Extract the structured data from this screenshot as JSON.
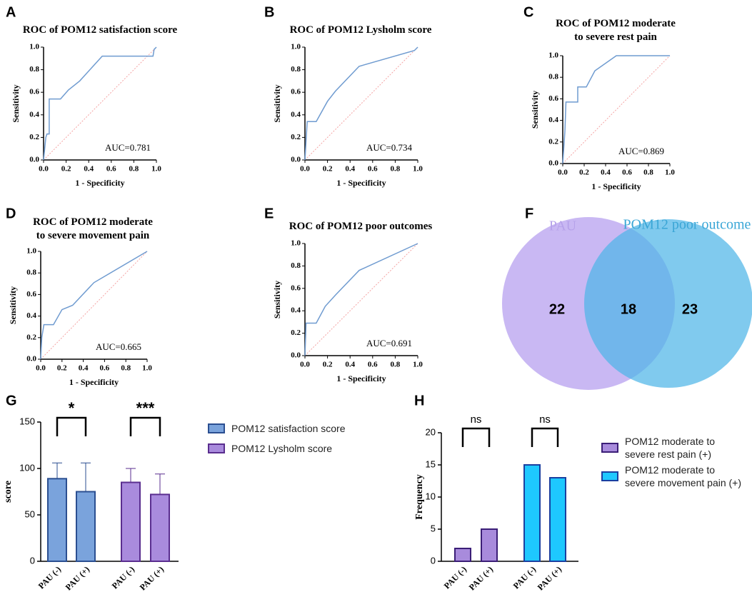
{
  "chart_data": [
    {
      "type": "roc",
      "panel": "A",
      "title": "ROC of POM12 satisfaction score",
      "xlabel": "1 - Specificity",
      "ylabel": "Sensitivity",
      "annotation": "AUC=0.781",
      "color": "#6f9bd0",
      "x": [
        0,
        0.02,
        0.03,
        0.05,
        0.05,
        0.15,
        0.22,
        0.32,
        0.52,
        0.97,
        0.98,
        1
      ],
      "values": [
        0,
        0.2,
        0.23,
        0.23,
        0.54,
        0.54,
        0.62,
        0.7,
        0.92,
        0.92,
        0.98,
        1
      ],
      "xlim": [
        0,
        1
      ],
      "ylim": [
        0,
        1
      ],
      "xticks": [
        {
          "value": 0,
          "label": "0.0"
        },
        {
          "value": 0.2,
          "label": "0.2"
        },
        {
          "value": 0.4,
          "label": "0.4"
        },
        {
          "value": 0.6,
          "label": "0.6"
        },
        {
          "value": 0.8,
          "label": "0.8"
        },
        {
          "value": 1,
          "label": "1.0"
        }
      ],
      "yticks": [
        {
          "value": 0,
          "label": "0.0"
        },
        {
          "value": 0.2,
          "label": "0.2"
        },
        {
          "value": 0.4,
          "label": "0.4"
        },
        {
          "value": 0.6,
          "label": "0.6"
        },
        {
          "value": 0.8,
          "label": "0.8"
        },
        {
          "value": 1,
          "label": "1.0"
        }
      ]
    },
    {
      "type": "roc",
      "panel": "B",
      "title": "ROC of POM12 Lysholm score",
      "xlabel": "1 - Specificity",
      "ylabel": "Sensitivity",
      "annotation": "AUC=0.734",
      "color": "#6f9bd0",
      "x": [
        0,
        0.02,
        0.1,
        0.2,
        0.27,
        0.48,
        0.97,
        1
      ],
      "values": [
        0,
        0.34,
        0.34,
        0.52,
        0.61,
        0.83,
        0.97,
        1
      ],
      "xlim": [
        0,
        1
      ],
      "ylim": [
        0,
        1
      ],
      "xticks": [
        {
          "value": 0,
          "label": "0.0"
        },
        {
          "value": 0.2,
          "label": "0.2"
        },
        {
          "value": 0.4,
          "label": "0.4"
        },
        {
          "value": 0.6,
          "label": "0.6"
        },
        {
          "value": 0.8,
          "label": "0.8"
        },
        {
          "value": 1,
          "label": "1.0"
        }
      ],
      "yticks": [
        {
          "value": 0,
          "label": "0.0"
        },
        {
          "value": 0.2,
          "label": "0.2"
        },
        {
          "value": 0.4,
          "label": "0.4"
        },
        {
          "value": 0.6,
          "label": "0.6"
        },
        {
          "value": 0.8,
          "label": "0.8"
        },
        {
          "value": 1,
          "label": "1.0"
        }
      ]
    },
    {
      "type": "roc",
      "panel": "C",
      "title": "ROC of POM12 moderate to severe rest pain",
      "xlabel": "1 - Specificity",
      "ylabel": "Sensitivity",
      "annotation": "AUC=0.869",
      "color": "#6f9bd0",
      "x": [
        0,
        0.02,
        0.03,
        0.14,
        0.14,
        0.22,
        0.3,
        0.5,
        1
      ],
      "values": [
        0,
        0.3,
        0.57,
        0.57,
        0.71,
        0.71,
        0.86,
        1,
        1
      ],
      "xlim": [
        0,
        1
      ],
      "ylim": [
        0,
        1
      ],
      "xticks": [
        {
          "value": 0,
          "label": "0.0"
        },
        {
          "value": 0.2,
          "label": "0.2"
        },
        {
          "value": 0.4,
          "label": "0.4"
        },
        {
          "value": 0.6,
          "label": "0.6"
        },
        {
          "value": 0.8,
          "label": "0.8"
        },
        {
          "value": 1,
          "label": "1.0"
        }
      ],
      "yticks": [
        {
          "value": 0,
          "label": "0.0"
        },
        {
          "value": 0.2,
          "label": "0.2"
        },
        {
          "value": 0.4,
          "label": "0.4"
        },
        {
          "value": 0.6,
          "label": "0.6"
        },
        {
          "value": 0.8,
          "label": "0.8"
        },
        {
          "value": 1,
          "label": "1.0"
        }
      ]
    },
    {
      "type": "roc",
      "panel": "D",
      "title": "ROC of POM12 moderate to severe movement pain",
      "xlabel": "1 - Specificity",
      "ylabel": "Sensitivity",
      "annotation": "AUC=0.665",
      "color": "#6f9bd0",
      "x": [
        0,
        0.01,
        0.03,
        0.12,
        0.2,
        0.3,
        0.5,
        1
      ],
      "values": [
        0,
        0.2,
        0.32,
        0.32,
        0.46,
        0.5,
        0.71,
        1
      ],
      "xlim": [
        0,
        1
      ],
      "ylim": [
        0,
        1
      ],
      "xticks": [
        {
          "value": 0,
          "label": "0.0"
        },
        {
          "value": 0.2,
          "label": "0.2"
        },
        {
          "value": 0.4,
          "label": "0.4"
        },
        {
          "value": 0.6,
          "label": "0.6"
        },
        {
          "value": 0.8,
          "label": "0.8"
        },
        {
          "value": 1,
          "label": "1.0"
        }
      ],
      "yticks": [
        {
          "value": 0,
          "label": "0.0"
        },
        {
          "value": 0.2,
          "label": "0.2"
        },
        {
          "value": 0.4,
          "label": "0.4"
        },
        {
          "value": 0.6,
          "label": "0.6"
        },
        {
          "value": 0.8,
          "label": "0.8"
        },
        {
          "value": 1,
          "label": "1.0"
        }
      ]
    },
    {
      "type": "roc",
      "panel": "E",
      "title": "ROC of POM12 poor outcomes",
      "xlabel": "1 - Specificity",
      "ylabel": "Sensitivity",
      "annotation": "AUC=0.691",
      "color": "#6f9bd0",
      "x": [
        0,
        0.01,
        0.1,
        0.18,
        0.27,
        0.48,
        1
      ],
      "values": [
        0,
        0.29,
        0.29,
        0.44,
        0.54,
        0.76,
        1
      ],
      "xlim": [
        0,
        1
      ],
      "ylim": [
        0,
        1
      ],
      "xticks": [
        {
          "value": 0,
          "label": "0.0"
        },
        {
          "value": 0.2,
          "label": "0.2"
        },
        {
          "value": 0.4,
          "label": "0.4"
        },
        {
          "value": 0.6,
          "label": "0.6"
        },
        {
          "value": 0.8,
          "label": "0.8"
        },
        {
          "value": 1,
          "label": "1.0"
        }
      ],
      "yticks": [
        {
          "value": 0,
          "label": "0.0"
        },
        {
          "value": 0.2,
          "label": "0.2"
        },
        {
          "value": 0.4,
          "label": "0.4"
        },
        {
          "value": 0.6,
          "label": "0.6"
        },
        {
          "value": 0.8,
          "label": "0.8"
        },
        {
          "value": 1,
          "label": "1.0"
        }
      ]
    },
    {
      "type": "venn",
      "panel": "F",
      "sets": [
        {
          "name": "PAU",
          "color": "#c9b8f3",
          "label_color": "#b6a2ea"
        },
        {
          "name": "POM12 poor outcome",
          "color": "#4fb6e8",
          "label_color": "#3aa6d6"
        }
      ],
      "values": [
        22,
        18,
        23
      ]
    },
    {
      "type": "bar",
      "panel": "G",
      "ylabel": "score",
      "categories": [
        "PAU (-)",
        "PAU (+)"
      ],
      "series": [
        {
          "name": "POM12 satisfaction score",
          "color": "#7aa3dc",
          "edge": "#2b4f91",
          "values": [
            89,
            75
          ],
          "errors": [
            17,
            31
          ]
        },
        {
          "name": "POM12 Lysholm score",
          "color": "#a98bdd",
          "edge": "#5a2e8f",
          "values": [
            85,
            72
          ],
          "errors": [
            15,
            22
          ]
        }
      ],
      "annotations": [
        "*",
        "***"
      ],
      "ylim": [
        0,
        150
      ],
      "yticks": [
        0,
        50,
        100,
        150
      ]
    },
    {
      "type": "bar",
      "panel": "H",
      "ylabel": "Frequency",
      "categories": [
        "PAU (-)",
        "PAU (+)"
      ],
      "series": [
        {
          "name": "POM12 moderate to severe rest pain (+)",
          "color": "#a88bdc",
          "edge": "#3b1e77",
          "values": [
            2,
            5
          ]
        },
        {
          "name": "POM12 moderate to severe movement pain (+)",
          "color": "#1ec8ff",
          "edge": "#1a3fa0",
          "values": [
            15,
            13
          ]
        }
      ],
      "annotations": [
        "ns",
        "ns"
      ],
      "ylim": [
        0,
        20
      ],
      "yticks": [
        0,
        5,
        10,
        15,
        20
      ]
    }
  ]
}
